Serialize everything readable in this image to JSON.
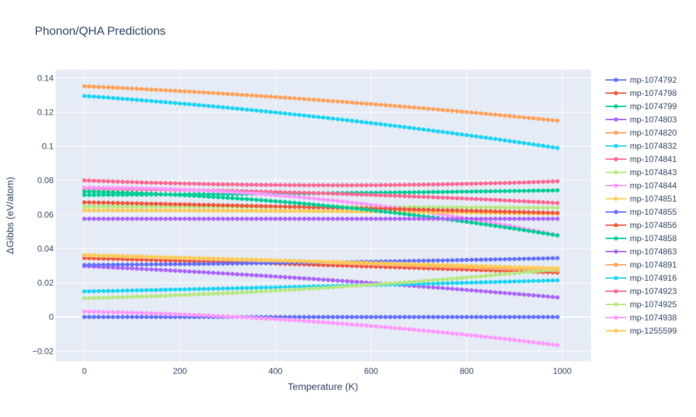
{
  "chart_data": {
    "type": "line",
    "title": "Phonon/QHA Predictions",
    "xlabel": "Temperature (K)",
    "ylabel": "ΔGibbs (eV/atom)",
    "xlim": [
      -60,
      1060
    ],
    "ylim": [
      -0.026,
      0.145
    ],
    "xticks": [
      0,
      200,
      400,
      600,
      800,
      1000
    ],
    "xtick_labels": [
      "0",
      "200",
      "400",
      "600",
      "800",
      "1000"
    ],
    "yticks": [
      -0.02,
      0,
      0.02,
      0.04,
      0.06,
      0.08,
      0.1,
      0.12,
      0.14
    ],
    "ytick_labels": [
      "−0.02",
      "0",
      "0.02",
      "0.04",
      "0.06",
      "0.08",
      "0.1",
      "0.12",
      "0.14"
    ],
    "grid": true,
    "legend_position": "right",
    "x": {
      "start": 0,
      "stop": 990,
      "step": 10
    },
    "series": [
      {
        "name": "mp-1074792",
        "color": "#636efa",
        "values": [
          0,
          0,
          0
        ]
      },
      {
        "name": "mp-1074798",
        "color": "#EF553B",
        "values": [
          0.0345,
          0.0305,
          0.026
        ]
      },
      {
        "name": "mp-1074799",
        "color": "#00cc96",
        "values": [
          0.0715,
          0.0725,
          0.0742
        ]
      },
      {
        "name": "mp-1074803",
        "color": "#ab63fa",
        "values": [
          0.0298,
          0.022,
          0.0115
        ]
      },
      {
        "name": "mp-1074820",
        "color": "#FFA15A",
        "values": [
          0.1352,
          0.127,
          0.115
        ]
      },
      {
        "name": "mp-1074832",
        "color": "#19d3f3",
        "values": [
          0.1295,
          0.117,
          0.099
        ]
      },
      {
        "name": "mp-1074841",
        "color": "#FF6692",
        "values": [
          0.0752,
          0.0725,
          0.0668
        ]
      },
      {
        "name": "mp-1074843",
        "color": "#B6E880",
        "values": [
          0.0648,
          0.0645,
          0.064
        ]
      },
      {
        "name": "mp-1074844",
        "color": "#FF97FF",
        "values": [
          0.0758,
          0.069,
          0.048
        ]
      },
      {
        "name": "mp-1074851",
        "color": "#FECB52",
        "values": [
          0.0625,
          0.062,
          0.0605
        ]
      },
      {
        "name": "mp-1074855",
        "color": "#636efa",
        "values": [
          0.0305,
          0.032,
          0.0345
        ]
      },
      {
        "name": "mp-1074856",
        "color": "#EF553B",
        "values": [
          0.0672,
          0.0642,
          0.061
        ]
      },
      {
        "name": "mp-1074858",
        "color": "#00cc96",
        "values": [
          0.0735,
          0.0655,
          0.0478
        ]
      },
      {
        "name": "mp-1074863",
        "color": "#ab63fa",
        "values": [
          0.0575,
          0.0575,
          0.0575
        ]
      },
      {
        "name": "mp-1074891",
        "color": "#FFA15A",
        "values": [
          0.0362,
          0.0322,
          0.0272
        ]
      },
      {
        "name": "mp-1074916",
        "color": "#19d3f3",
        "values": [
          0.015,
          0.018,
          0.0215
        ]
      },
      {
        "name": "mp-1074923",
        "color": "#FF6692",
        "values": [
          0.08,
          0.0772,
          0.0795
        ]
      },
      {
        "name": "mp-1074925",
        "color": "#B6E880",
        "values": [
          0.011,
          0.017,
          0.028
        ]
      },
      {
        "name": "mp-1074938",
        "color": "#FF97FF",
        "values": [
          0.0032,
          -0.003,
          -0.0165
        ]
      },
      {
        "name": "mp-1255599",
        "color": "#FECB52",
        "values": [
          0.0363,
          0.0325,
          0.0285
        ]
      }
    ]
  }
}
